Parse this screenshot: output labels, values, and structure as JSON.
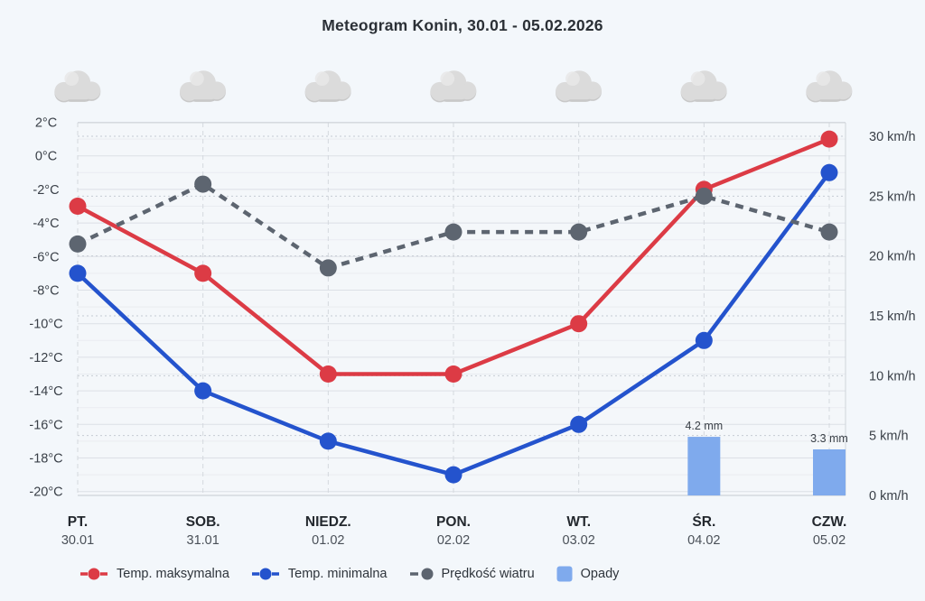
{
  "title": "Meteogram Konin, 30.01 - 05.02.2026",
  "colors": {
    "background": "#f3f7fb",
    "plot_background": "#f4f7fa",
    "temp_max": "#dc3b45",
    "temp_min": "#2453cd",
    "wind": "#5d6570",
    "precip_bar": "#7faaed",
    "grid_major": "#dce0e6",
    "grid_minor": "#e9ecf1",
    "grid_wind_dotted": "#c5cbd4",
    "grid_day_dashed": "#d4d8de",
    "plot_border": "#cfd4da",
    "text_axis": "#3a4048",
    "text_day": "#23282e",
    "text_date": "#4a5058",
    "text_bar_label": "#3a4047",
    "cloud_main": "#dbdbdb",
    "cloud_shadow": "#c8c8c8",
    "cloud_highlight": "#e8e8e8"
  },
  "chart_data": {
    "type": "line+bar combo meteogram",
    "title": "Meteogram Konin, 30.01 - 05.02.2026",
    "location": "Konin",
    "date_range": "30.01 - 05.02.2026",
    "grid": true,
    "legend_position": "bottom",
    "x_categories": [
      {
        "day": "PT.",
        "date": "30.01"
      },
      {
        "day": "SOB.",
        "date": "31.01"
      },
      {
        "day": "NIEDZ.",
        "date": "01.02"
      },
      {
        "day": "PON.",
        "date": "02.02"
      },
      {
        "day": "WT.",
        "date": "03.02"
      },
      {
        "day": "ŚR.",
        "date": "04.02"
      },
      {
        "day": "CZW.",
        "date": "05.02"
      }
    ],
    "weather_icons": [
      "cloudy",
      "cloudy",
      "cloudy",
      "cloudy",
      "cloudy",
      "cloudy",
      "cloudy"
    ],
    "series": [
      {
        "name": "Temp. maksymalna",
        "type": "line",
        "unit": "°C",
        "axis": "temperature",
        "values": [
          -3,
          -7,
          -13,
          -13,
          -10,
          -2,
          1
        ]
      },
      {
        "name": "Temp. minimalna",
        "type": "line",
        "unit": "°C",
        "axis": "temperature",
        "values": [
          -7,
          -14,
          -17,
          -19,
          -16,
          -11,
          -1
        ]
      },
      {
        "name": "Prędkość wiatru",
        "type": "line-dashed",
        "unit": "km/h",
        "axis": "wind",
        "values": [
          21,
          26,
          19,
          22,
          22,
          25,
          22
        ]
      },
      {
        "name": "Opady",
        "type": "bar",
        "unit": "mm",
        "axis": "precipitation",
        "values": [
          0,
          0,
          0,
          0,
          0,
          4.2,
          3.3
        ],
        "bar_labels": [
          "",
          "",
          "",
          "",
          "",
          "4.2 mm",
          "3.3 mm"
        ]
      }
    ],
    "axes": {
      "temperature": {
        "position": "left",
        "range": [
          -20,
          2
        ],
        "ticks": [
          {
            "label": "2°C",
            "value": 2
          },
          {
            "label": "0°C",
            "value": 0
          },
          {
            "label": "-2°C",
            "value": -2
          },
          {
            "label": "-4°C",
            "value": -4
          },
          {
            "label": "-6°C",
            "value": -6
          },
          {
            "label": "-8°C",
            "value": -8
          },
          {
            "label": "-10°C",
            "value": -10
          },
          {
            "label": "-12°C",
            "value": -12
          },
          {
            "label": "-14°C",
            "value": -14
          },
          {
            "label": "-16°C",
            "value": -16
          },
          {
            "label": "-18°C",
            "value": -18
          },
          {
            "label": "-20°C",
            "value": -20
          }
        ]
      },
      "wind": {
        "position": "right",
        "range": [
          0,
          30
        ],
        "ticks": [
          {
            "label": "30 km/h",
            "value": 30
          },
          {
            "label": "25 km/h",
            "value": 25
          },
          {
            "label": "20 km/h",
            "value": 20
          },
          {
            "label": "15 km/h",
            "value": 15
          },
          {
            "label": "10 km/h",
            "value": 10
          },
          {
            "label": "5 km/h",
            "value": 5
          },
          {
            "label": "0 km/h",
            "value": 0
          }
        ]
      }
    }
  },
  "legend": {
    "items": [
      {
        "label": "Temp. maksymalna",
        "marker": "line-dot"
      },
      {
        "label": "Temp. minimalna",
        "marker": "line-dot"
      },
      {
        "label": "Prędkość wiatru",
        "marker": "dash-dot"
      },
      {
        "label": "Opady",
        "marker": "square"
      }
    ]
  }
}
